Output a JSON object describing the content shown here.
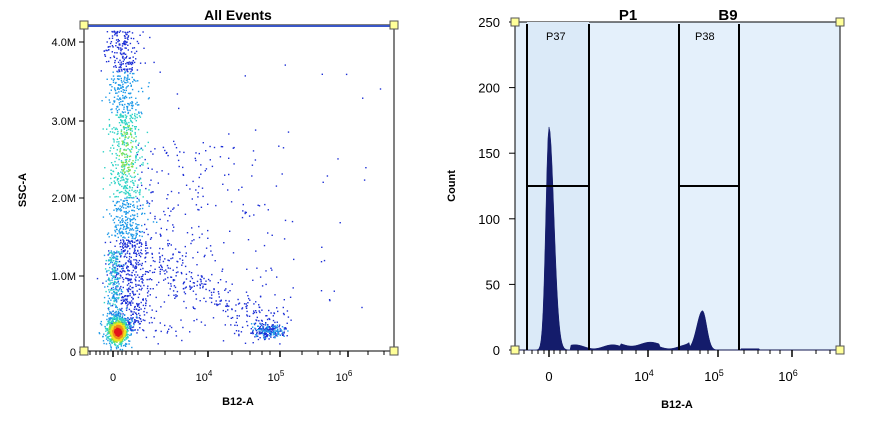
{
  "chart_data": [
    {
      "type": "scatter",
      "title": "All Events",
      "xlabel": "B12-A",
      "ylabel": "SSC-A",
      "x_ticks": [
        {
          "label": "0",
          "sup": ""
        },
        {
          "label": "10",
          "sup": "4"
        },
        {
          "label": "10",
          "sup": "5"
        },
        {
          "label": "10",
          "sup": "6"
        }
      ],
      "y_ticks": [
        "0",
        "1.0M",
        "2.0M",
        "3.0M",
        "4.0M"
      ],
      "ylim": [
        0,
        4200000
      ],
      "colormap": [
        "#1c2fd6",
        "#1f9ae8",
        "#2fd3c6",
        "#7fe04a",
        "#f2e21d",
        "#f08a1a",
        "#e4141b"
      ],
      "populations": [
        {
          "name": "main-column",
          "x_center": 0,
          "y_center": 2500000,
          "density": "high"
        },
        {
          "name": "debris-cluster",
          "x_center": 0,
          "y_center": 250000,
          "density": "very-high"
        },
        {
          "name": "positive-cluster",
          "x_center": 100000,
          "y_center": 280000,
          "density": "medium"
        }
      ]
    },
    {
      "type": "histogram",
      "title_left": "P1",
      "title_right": "B9",
      "xlabel": "B12-A",
      "ylabel": "Count",
      "x_ticks": [
        {
          "label": "0",
          "sup": ""
        },
        {
          "label": "10",
          "sup": "4"
        },
        {
          "label": "10",
          "sup": "5"
        },
        {
          "label": "10",
          "sup": "6"
        }
      ],
      "y_ticks": [
        "0",
        "50",
        "100",
        "150",
        "200",
        "250"
      ],
      "ylim": [
        0,
        250
      ],
      "fill_color": "#141c6b",
      "background_color": "#e4f0fb",
      "gates": [
        {
          "name": "P37",
          "marker_count": 125
        },
        {
          "name": "P38",
          "marker_count": 125
        }
      ],
      "peaks": [
        {
          "x": 0,
          "count": 170
        },
        {
          "x": 60000,
          "count": 30
        }
      ]
    }
  ]
}
